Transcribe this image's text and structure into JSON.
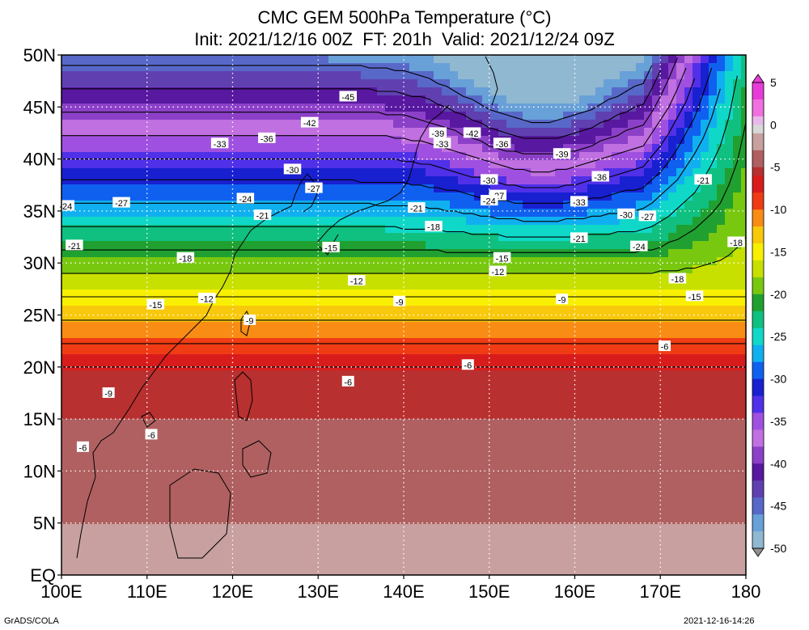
{
  "title": {
    "line1": "CMC GEM 500hPa Temperature (°C)",
    "line2": "Init: 2021/12/16 00Z  FT: 201h  Valid: 2021/12/24 09Z"
  },
  "axes": {
    "lat_labels": [
      "50N",
      "45N",
      "40N",
      "35N",
      "30N",
      "25N",
      "20N",
      "15N",
      "10N",
      "5N",
      "EQ"
    ],
    "lon_labels": [
      "100E",
      "110E",
      "120E",
      "130E",
      "140E",
      "150E",
      "160E",
      "170E",
      "180"
    ]
  },
  "colorbar": {
    "labels": [
      "5",
      "0",
      "-5",
      "-10",
      "-15",
      "-20",
      "-25",
      "-30",
      "-35",
      "-40",
      "-45",
      "-50"
    ],
    "stops": [
      {
        "t": 5,
        "c": "#e83cd8"
      },
      {
        "t": 3,
        "c": "#f070e0"
      },
      {
        "t": 1,
        "c": "#e8b8e8"
      },
      {
        "t": 0,
        "c": "#d8d8d8"
      },
      {
        "t": -1,
        "c": "#c8a0a0"
      },
      {
        "t": -3,
        "c": "#b06060"
      },
      {
        "t": -5,
        "c": "#b83030"
      },
      {
        "t": -6,
        "c": "#d81c1c"
      },
      {
        "t": -8,
        "c": "#f03c14"
      },
      {
        "t": -10,
        "c": "#f88c14"
      },
      {
        "t": -12,
        "c": "#f8c80c"
      },
      {
        "t": -14,
        "c": "#f8f000"
      },
      {
        "t": -16,
        "c": "#c8e000"
      },
      {
        "t": -18,
        "c": "#78c810"
      },
      {
        "t": -20,
        "c": "#20a030"
      },
      {
        "t": -22,
        "c": "#10c080"
      },
      {
        "t": -24,
        "c": "#10d8c8"
      },
      {
        "t": -26,
        "c": "#10b0f0"
      },
      {
        "t": -28,
        "c": "#1060f0"
      },
      {
        "t": -30,
        "c": "#1820d0"
      },
      {
        "t": -32,
        "c": "#5030e8"
      },
      {
        "t": -34,
        "c": "#a050e0"
      },
      {
        "t": -36,
        "c": "#c070e0"
      },
      {
        "t": -38,
        "c": "#8c40c8"
      },
      {
        "t": -40,
        "c": "#5818a0"
      },
      {
        "t": -42,
        "c": "#6040b0"
      },
      {
        "t": -44,
        "c": "#5868c8"
      },
      {
        "t": -46,
        "c": "#68a0d8"
      },
      {
        "t": -48,
        "c": "#90b8d0"
      },
      {
        "t": -50,
        "c": "#909090"
      }
    ]
  },
  "contour_labels": [
    {
      "text": "-45",
      "lon": 133.5,
      "lat": 46.0
    },
    {
      "text": "-42",
      "lon": 129.0,
      "lat": 43.5
    },
    {
      "text": "-39",
      "lon": 144.0,
      "lat": 42.5
    },
    {
      "text": "-42",
      "lon": 148.0,
      "lat": 42.5
    },
    {
      "text": "-33",
      "lon": 118.5,
      "lat": 41.5
    },
    {
      "text": "-36",
      "lon": 124.0,
      "lat": 42.0
    },
    {
      "text": "-33",
      "lon": 144.5,
      "lat": 41.5
    },
    {
      "text": "-36",
      "lon": 151.5,
      "lat": 41.5
    },
    {
      "text": "-39",
      "lon": 158.5,
      "lat": 40.5
    },
    {
      "text": "-30",
      "lon": 127.0,
      "lat": 39.0
    },
    {
      "text": "-30",
      "lon": 150.0,
      "lat": 38.0
    },
    {
      "text": "-36",
      "lon": 163.0,
      "lat": 38.3
    },
    {
      "text": "-21",
      "lon": 175.0,
      "lat": 38.0
    },
    {
      "text": "-27",
      "lon": 129.5,
      "lat": 37.2
    },
    {
      "text": "-27",
      "lon": 151.0,
      "lat": 36.5
    },
    {
      "text": "-24",
      "lon": 100.5,
      "lat": 35.5
    },
    {
      "text": "-27",
      "lon": 107.0,
      "lat": 35.8
    },
    {
      "text": "-24",
      "lon": 121.5,
      "lat": 36.2
    },
    {
      "text": "-24",
      "lon": 150.0,
      "lat": 36.0
    },
    {
      "text": "-21",
      "lon": 141.5,
      "lat": 35.3
    },
    {
      "text": "-33",
      "lon": 160.5,
      "lat": 35.9
    },
    {
      "text": "-21",
      "lon": 123.5,
      "lat": 34.6
    },
    {
      "text": "-30",
      "lon": 166.0,
      "lat": 34.7
    },
    {
      "text": "-27",
      "lon": 168.5,
      "lat": 34.5
    },
    {
      "text": "-18",
      "lon": 143.5,
      "lat": 33.5
    },
    {
      "text": "-21",
      "lon": 160.5,
      "lat": 32.4
    },
    {
      "text": "-18",
      "lon": 182.5,
      "lat": 32.0
    },
    {
      "text": "-21",
      "lon": 101.5,
      "lat": 31.7
    },
    {
      "text": "-15",
      "lon": 131.5,
      "lat": 31.5
    },
    {
      "text": "-24",
      "lon": 167.5,
      "lat": 31.6
    },
    {
      "text": "-18",
      "lon": 114.5,
      "lat": 30.5
    },
    {
      "text": "-15",
      "lon": 151.5,
      "lat": 30.5
    },
    {
      "text": "-12",
      "lon": 151.0,
      "lat": 29.2
    },
    {
      "text": "-12",
      "lon": 134.5,
      "lat": 28.3
    },
    {
      "text": "-18",
      "lon": 172.0,
      "lat": 28.5
    },
    {
      "text": "-12",
      "lon": 117.0,
      "lat": 26.6
    },
    {
      "text": "-15",
      "lon": 111.0,
      "lat": 26.0
    },
    {
      "text": "-9",
      "lon": 139.5,
      "lat": 26.3
    },
    {
      "text": "-9",
      "lon": 158.5,
      "lat": 26.5
    },
    {
      "text": "-15",
      "lon": 174.0,
      "lat": 26.8
    },
    {
      "text": "-9",
      "lon": 122.0,
      "lat": 24.5
    },
    {
      "text": "-6",
      "lon": 170.5,
      "lat": 22.0
    },
    {
      "text": "-6",
      "lon": 147.5,
      "lat": 20.2
    },
    {
      "text": "-6",
      "lon": 133.5,
      "lat": 18.6
    },
    {
      "text": "-9",
      "lon": 105.5,
      "lat": 17.5
    },
    {
      "text": "-6",
      "lon": 110.5,
      "lat": 13.5
    },
    {
      "text": "-6",
      "lon": 102.5,
      "lat": 12.3
    }
  ],
  "footer": {
    "left": "GrADS/COLA",
    "right": "2021-12-16-14:26"
  }
}
